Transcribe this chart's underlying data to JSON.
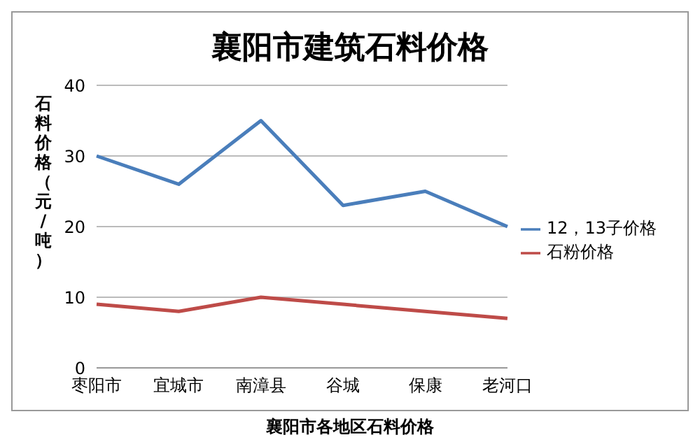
{
  "chart_data": {
    "type": "line",
    "title": "襄阳市建筑石料价格",
    "ylabel": "石料价格（元/吨）",
    "categories": [
      "枣阳市",
      "宜城市",
      "南漳县",
      "谷城",
      "保康",
      "老河口"
    ],
    "series": [
      {
        "name": "12，13子价格",
        "color": "#4a7ebb",
        "values": [
          30,
          26,
          35,
          23,
          25,
          20
        ]
      },
      {
        "name": "石粉价格",
        "color": "#be4b48",
        "values": [
          9,
          8,
          10,
          9,
          8,
          7
        ]
      }
    ],
    "ylim": [
      0,
      40
    ],
    "yticks": [
      0,
      10,
      20,
      30,
      40
    ],
    "grid": "y",
    "legend": "right",
    "marker": "none",
    "line_style": "solid",
    "annotations": [
      "襄阳市各地区石料价格"
    ]
  }
}
